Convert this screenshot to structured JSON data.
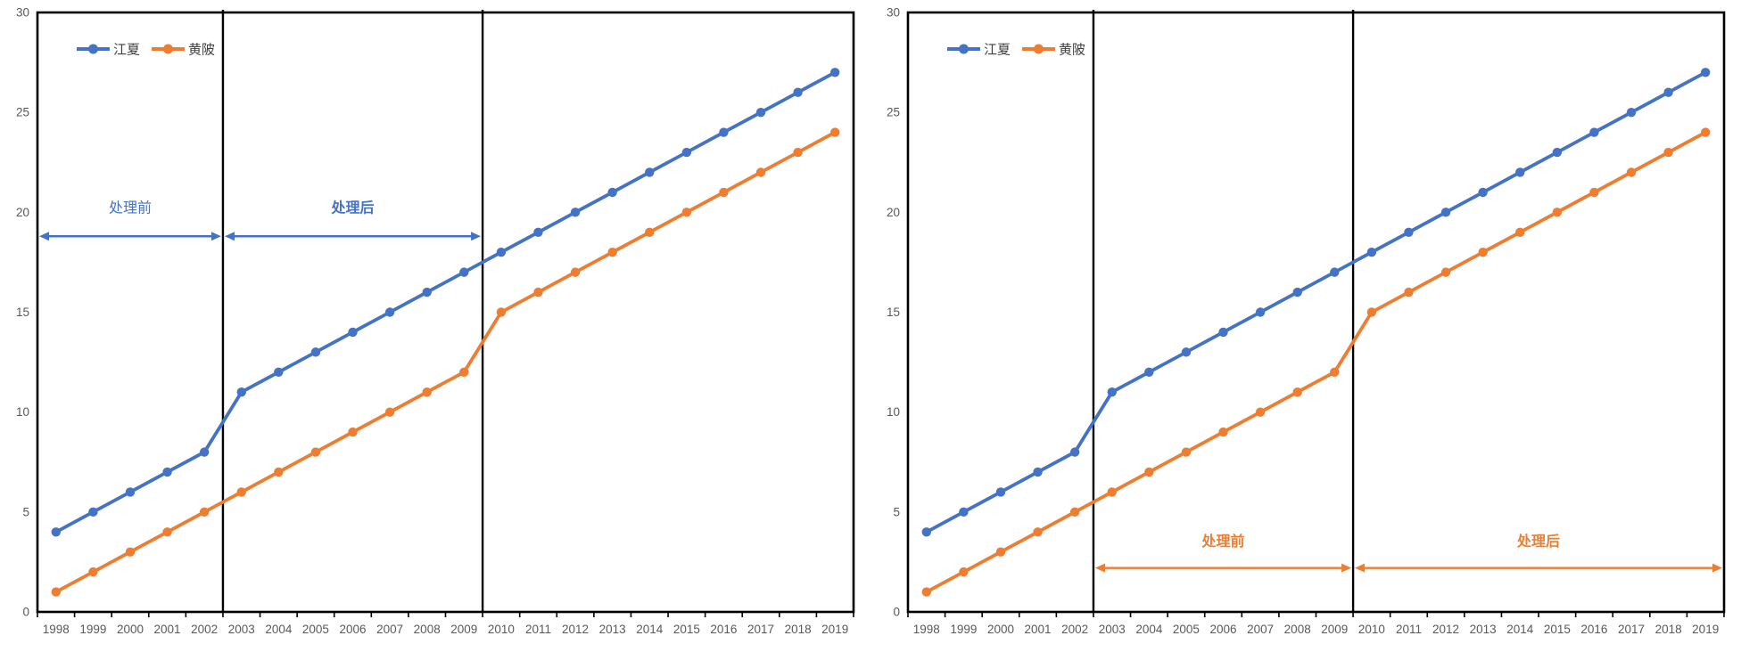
{
  "page": {
    "background": "#ffffff"
  },
  "colors": {
    "series_blue": "#4472C4",
    "series_orange": "#ED7D31",
    "axis_text": "#595959",
    "legend_text": "#404040",
    "frame": "#000000"
  },
  "chart_data": [
    {
      "id": "left-panel",
      "type": "line",
      "title": "",
      "xlabel": "",
      "ylabel": "",
      "ylim": [
        0,
        30
      ],
      "yticks": [
        0,
        5,
        10,
        15,
        20,
        25,
        30
      ],
      "grid": false,
      "legend_position": "top-left-inside",
      "categories": [
        "1998",
        "1999",
        "2000",
        "2001",
        "2002",
        "2003",
        "2004",
        "2005",
        "2006",
        "2007",
        "2008",
        "2009",
        "2010",
        "2011",
        "2012",
        "2013",
        "2014",
        "2015",
        "2016",
        "2017",
        "2018",
        "2019"
      ],
      "series": [
        {
          "name": "江夏",
          "color": "#4472C4",
          "marker": "circle",
          "values": [
            4,
            5,
            6,
            7,
            8,
            11,
            12,
            13,
            14,
            15,
            16,
            17,
            18,
            19,
            20,
            21,
            22,
            23,
            24,
            25,
            26,
            27
          ]
        },
        {
          "name": "黄陂",
          "color": "#ED7D31",
          "marker": "circle",
          "values": [
            1,
            2,
            3,
            4,
            5,
            6,
            7,
            8,
            9,
            10,
            11,
            12,
            15,
            16,
            17,
            18,
            19,
            20,
            21,
            22,
            23,
            24
          ]
        }
      ],
      "vertical_lines": [
        {
          "at_boundary": 5,
          "color": "#000000"
        },
        {
          "at_boundary": 12,
          "color": "#000000"
        }
      ],
      "annotations": [
        {
          "label": "处理前",
          "from_boundary": 0,
          "to_boundary": 5,
          "text_y": 20.0,
          "arrow_y": 18.8,
          "color": "#4472C4",
          "bold": false
        },
        {
          "label": "处理后",
          "from_boundary": 5,
          "to_boundary": 12,
          "text_y": 20.0,
          "arrow_y": 18.8,
          "color": "#4472C4",
          "bold": true
        }
      ]
    },
    {
      "id": "right-panel",
      "type": "line",
      "title": "",
      "xlabel": "",
      "ylabel": "",
      "ylim": [
        0,
        30
      ],
      "yticks": [
        0,
        5,
        10,
        15,
        20,
        25,
        30
      ],
      "grid": false,
      "legend_position": "top-left-inside",
      "categories": [
        "1998",
        "1999",
        "2000",
        "2001",
        "2002",
        "2003",
        "2004",
        "2005",
        "2006",
        "2007",
        "2008",
        "2009",
        "2010",
        "2011",
        "2012",
        "2013",
        "2014",
        "2015",
        "2016",
        "2017",
        "2018",
        "2019"
      ],
      "series": [
        {
          "name": "江夏",
          "color": "#4472C4",
          "marker": "circle",
          "values": [
            4,
            5,
            6,
            7,
            8,
            11,
            12,
            13,
            14,
            15,
            16,
            17,
            18,
            19,
            20,
            21,
            22,
            23,
            24,
            25,
            26,
            27
          ]
        },
        {
          "name": "黄陂",
          "color": "#ED7D31",
          "marker": "circle",
          "values": [
            1,
            2,
            3,
            4,
            5,
            6,
            7,
            8,
            9,
            10,
            11,
            12,
            15,
            16,
            17,
            18,
            19,
            20,
            21,
            22,
            23,
            24
          ]
        }
      ],
      "vertical_lines": [
        {
          "at_boundary": 5,
          "color": "#000000"
        },
        {
          "at_boundary": 12,
          "color": "#000000"
        }
      ],
      "annotations": [
        {
          "label": "处理前",
          "from_boundary": 5,
          "to_boundary": 12,
          "text_y": 3.3,
          "arrow_y": 2.2,
          "color": "#ED7D31",
          "bold": true
        },
        {
          "label": "处理后",
          "from_boundary": 12,
          "to_boundary": 22,
          "text_y": 3.3,
          "arrow_y": 2.2,
          "color": "#ED7D31",
          "bold": true
        }
      ]
    }
  ]
}
